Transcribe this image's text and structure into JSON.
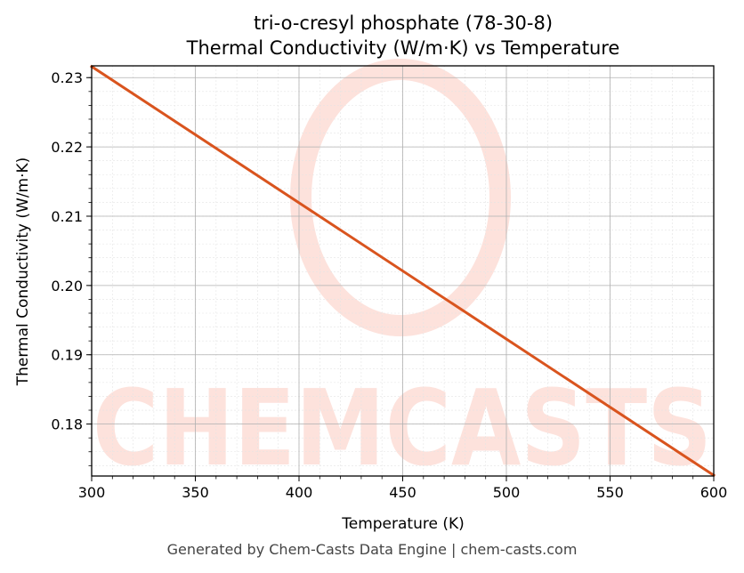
{
  "chart_data": {
    "type": "line",
    "title_line1": "tri-o-cresyl phosphate (78-30-8)",
    "title_line2": "Thermal Conductivity (W/m·K) vs Temperature",
    "xlabel": "Temperature (K)",
    "ylabel": "Thermal Conductivity (W/m·K)",
    "xlim": [
      300,
      600
    ],
    "ylim": [
      0.1725,
      0.2317
    ],
    "x_ticks": [
      300,
      350,
      400,
      450,
      500,
      550,
      600
    ],
    "y_ticks": [
      0.18,
      0.19,
      0.2,
      0.21,
      0.22,
      0.23
    ],
    "y_tick_labels": [
      "0.18",
      "0.19",
      "0.20",
      "0.21",
      "0.22",
      "0.23"
    ],
    "grid": true,
    "series": [
      {
        "color": "#d9541e",
        "x": [
          300,
          600
        ],
        "y": [
          0.2316,
          0.1726
        ]
      }
    ]
  },
  "watermark": {
    "text": "CHEMCASTS",
    "color": "#fde2dc"
  },
  "footer": "Generated by Chem-Casts Data Engine | chem-casts.com"
}
